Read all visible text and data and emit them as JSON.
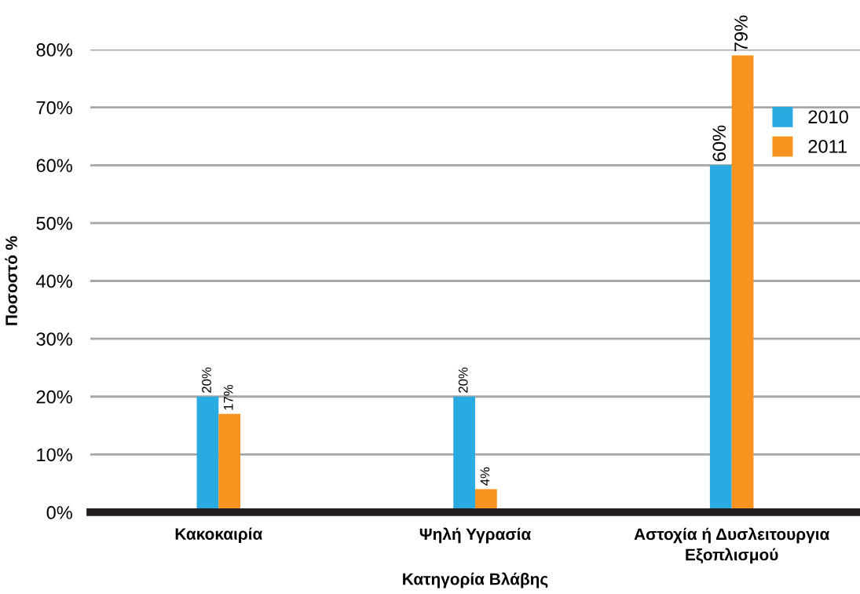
{
  "chart_data": {
    "type": "bar",
    "xlabel": "Κατηγορία Βλάβης",
    "ylabel": "Ποσοστό %",
    "categories": [
      "Κακοκαιρία",
      "Ψηλή Υγρασία",
      "Αστοχία ή Δυσλειτουργια Εξοπλισμού"
    ],
    "series": [
      {
        "name": "2010",
        "color": "#29abe2",
        "values": [
          20,
          20,
          60
        ],
        "value_labels": [
          "20%",
          "20%",
          "60%"
        ]
      },
      {
        "name": "2011",
        "color": "#f7931e",
        "values": [
          17,
          4,
          79
        ],
        "value_labels": [
          "17%",
          "4%",
          "79%"
        ]
      }
    ],
    "ylim": [
      0,
      80
    ],
    "yticks": [
      {
        "value": 0,
        "label": "0%"
      },
      {
        "value": 10,
        "label": "10%"
      },
      {
        "value": 20,
        "label": "20%"
      },
      {
        "value": 30,
        "label": "30%"
      },
      {
        "value": 40,
        "label": "40%"
      },
      {
        "value": 50,
        "label": "50%"
      },
      {
        "value": 60,
        "label": "60%"
      },
      {
        "value": 70,
        "label": "70%"
      },
      {
        "value": 80,
        "label": "80%"
      }
    ],
    "grid": "y",
    "legend": "top right"
  }
}
